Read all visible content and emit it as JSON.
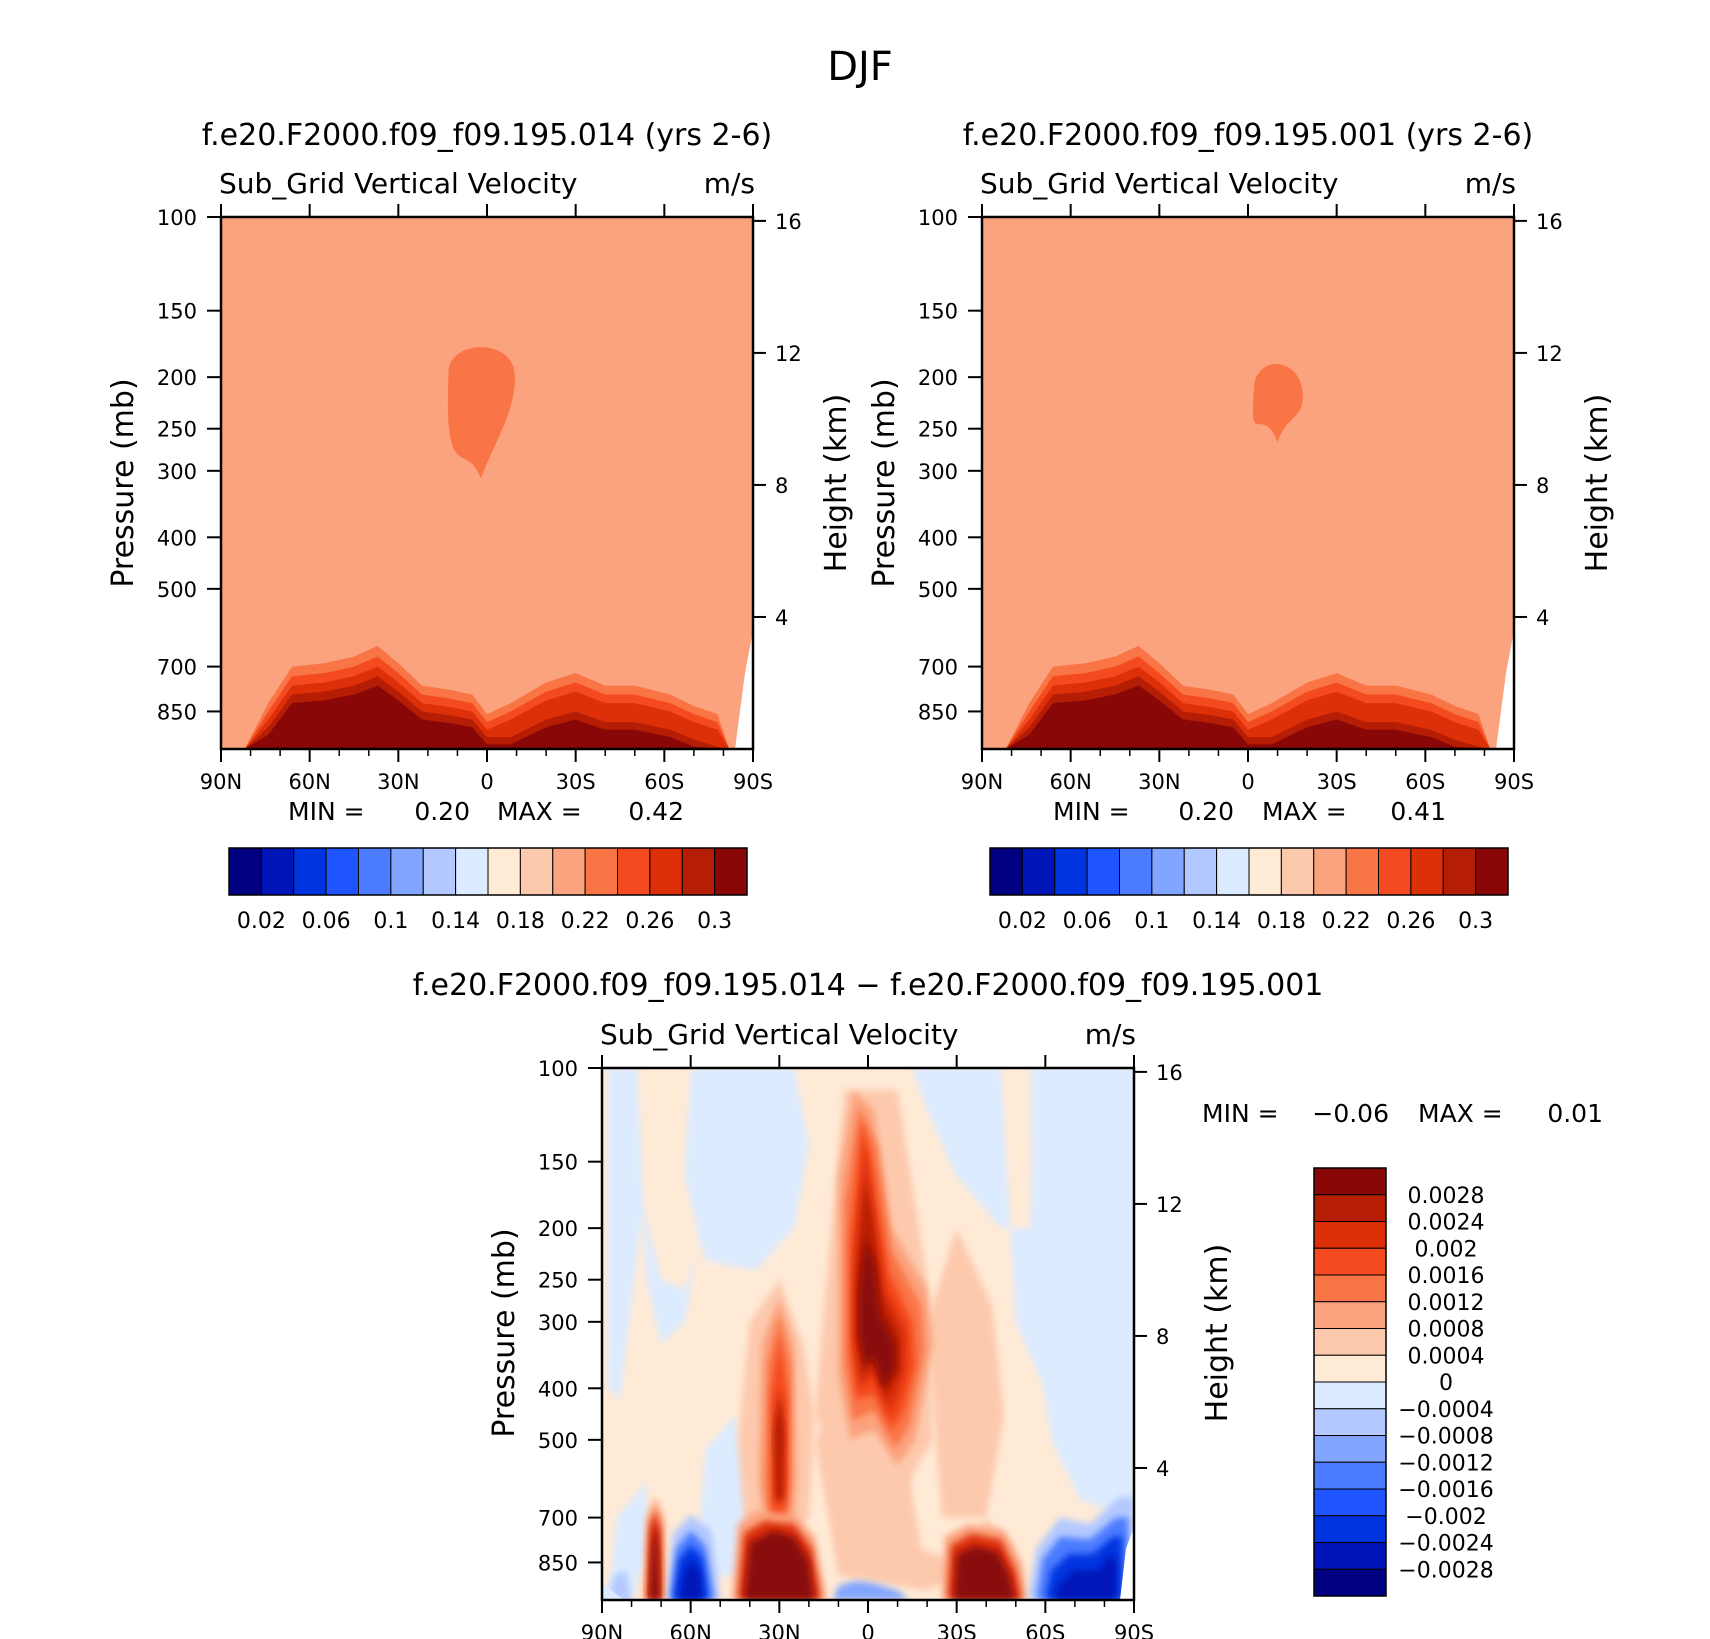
{
  "page": {
    "title": "DJF"
  },
  "chart_data": [
    {
      "type": "heatmap",
      "title": "f.e20.F2000.f09_f09.195.014 (yrs 2-6)",
      "subtitle": "Sub_Grid Vertical Velocity",
      "units": "m/s",
      "xlabel": "",
      "ylabel": "Pressure (mb)",
      "ylabel_right": "Height (km)",
      "x_ticks": [
        "90N",
        "60N",
        "30N",
        "0",
        "30S",
        "60S",
        "90S"
      ],
      "x_tick_lat": [
        90,
        60,
        30,
        0,
        -30,
        -60,
        -90
      ],
      "y_ticks": [
        100,
        150,
        200,
        250,
        300,
        400,
        500,
        700,
        850
      ],
      "y_right_ticks": [
        16,
        12,
        8,
        4
      ],
      "ylim": [
        100,
        1000
      ],
      "y_scale": "log",
      "stats_labels": [
        "MIN =",
        "MAX ="
      ],
      "min": "0.20",
      "max": "0.42",
      "colorbar": {
        "orientation": "horizontal",
        "labels": [
          "0.02",
          "0.06",
          "0.1",
          "0.14",
          "0.18",
          "0.22",
          "0.26",
          "0.3"
        ],
        "colors": [
          "#000080",
          "#0015b8",
          "#0034e0",
          "#1f55ff",
          "#4b7cff",
          "#82a6ff",
          "#b3c9ff",
          "#dcebff",
          "#ffead6",
          "#fdc9ad",
          "#fba37e",
          "#fa7546",
          "#f44a1f",
          "#de3008",
          "#b51d05",
          "#8a0707"
        ]
      },
      "field": {
        "background_level": 10,
        "features": [
          {
            "kind": "upper-blob",
            "lat": [
              13,
              -9
            ],
            "p": [
              172,
              310
            ],
            "level": 11
          },
          {
            "kind": "surface-bands",
            "lat_range": [
              82,
              -85
            ],
            "level_max": 15
          }
        ]
      }
    },
    {
      "type": "heatmap",
      "title": "f.e20.F2000.f09_f09.195.001 (yrs 2-6)",
      "subtitle": "Sub_Grid Vertical Velocity",
      "units": "m/s",
      "xlabel": "",
      "ylabel": "Pressure (mb)",
      "ylabel_right": "Height (km)",
      "x_ticks": [
        "90N",
        "60N",
        "30N",
        "0",
        "30S",
        "60S",
        "90S"
      ],
      "x_tick_lat": [
        90,
        60,
        30,
        0,
        -30,
        -60,
        -90
      ],
      "y_ticks": [
        100,
        150,
        200,
        250,
        300,
        400,
        500,
        700,
        850
      ],
      "y_right_ticks": [
        16,
        12,
        8,
        4
      ],
      "ylim": [
        100,
        1000
      ],
      "y_scale": "log",
      "stats_labels": [
        "MIN =",
        "MAX ="
      ],
      "min": "0.20",
      "max": "0.41",
      "colorbar": {
        "orientation": "horizontal",
        "labels": [
          "0.02",
          "0.06",
          "0.1",
          "0.14",
          "0.18",
          "0.22",
          "0.26",
          "0.3"
        ],
        "colors": [
          "#000080",
          "#0015b8",
          "#0034e0",
          "#1f55ff",
          "#4b7cff",
          "#82a6ff",
          "#b3c9ff",
          "#dcebff",
          "#ffead6",
          "#fdc9ad",
          "#fba37e",
          "#fa7546",
          "#f44a1f",
          "#de3008",
          "#b51d05",
          "#8a0707"
        ]
      },
      "field": {
        "background_level": 10,
        "features": [
          {
            "kind": "upper-blob",
            "lat": [
              -2,
              -18
            ],
            "p": [
              185,
              265
            ],
            "level": 11
          },
          {
            "kind": "surface-bands",
            "lat_range": [
              82,
              -85
            ],
            "level_max": 15
          }
        ]
      }
    },
    {
      "type": "heatmap",
      "title": "f.e20.F2000.f09_f09.195.014 − f.e20.F2000.f09_f09.195.001",
      "subtitle": "Sub_Grid Vertical Velocity",
      "units": "m/s",
      "xlabel": "",
      "ylabel": "Pressure (mb)",
      "ylabel_right": "Height (km)",
      "x_ticks": [
        "90N",
        "60N",
        "30N",
        "0",
        "30S",
        "60S",
        "90S"
      ],
      "x_tick_lat": [
        90,
        60,
        30,
        0,
        -30,
        -60,
        -90
      ],
      "y_ticks": [
        100,
        150,
        200,
        250,
        300,
        400,
        500,
        700,
        850
      ],
      "y_right_ticks": [
        16,
        12,
        8,
        4
      ],
      "ylim": [
        100,
        1000
      ],
      "y_scale": "log",
      "stats_labels": [
        "MIN =",
        "MAX ="
      ],
      "min": "−0.06",
      "max": "0.01",
      "colorbar": {
        "orientation": "vertical",
        "labels": [
          "0.0028",
          "0.0024",
          "0.002",
          "0.0016",
          "0.0012",
          "0.0008",
          "0.0004",
          "0",
          "−0.0004",
          "−0.0008",
          "−0.0012",
          "−0.0016",
          "−0.002",
          "−0.0024",
          "−0.0028"
        ],
        "colors": [
          "#8a0707",
          "#b51d05",
          "#de3008",
          "#f44a1f",
          "#fa7546",
          "#fba37e",
          "#fdc9ad",
          "#ffead6",
          "#dcebff",
          "#b3c9ff",
          "#82a6ff",
          "#4b7cff",
          "#1f55ff",
          "#0034e0",
          "#0015b8",
          "#000080"
        ]
      },
      "field": {
        "features": [
          {
            "kind": "equatorial-max",
            "lat": [
              6,
              -6
            ],
            "p_top": 140,
            "sign": "positive"
          },
          {
            "kind": "column-30N",
            "lat": 30,
            "p_top": 280,
            "sign": "positive"
          },
          {
            "kind": "surface-pos",
            "lat": [
              72,
              30,
              -40
            ],
            "sign": "positive"
          },
          {
            "kind": "surface-neg",
            "lat": [
              60,
              -60,
              -85
            ],
            "sign": "negative"
          }
        ]
      }
    }
  ]
}
